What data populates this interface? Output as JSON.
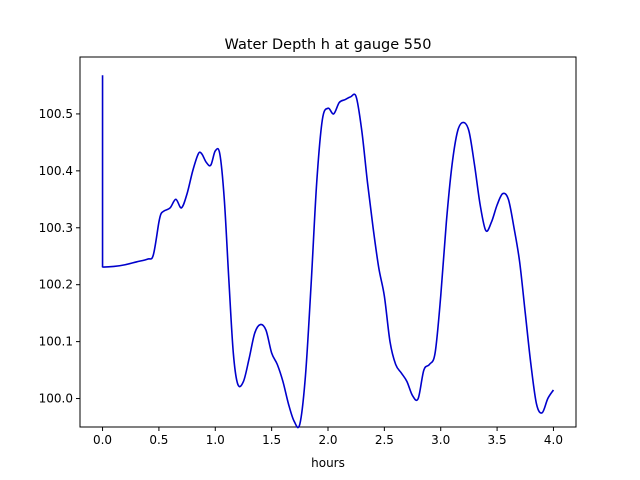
{
  "chart_data": {
    "type": "line",
    "title": "Water Depth h at gauge 550",
    "xlabel": "hours",
    "ylabel": "",
    "xlim": [
      -0.2,
      4.2
    ],
    "ylim": [
      99.95,
      100.6
    ],
    "xticks": [
      0.0,
      0.5,
      1.0,
      1.5,
      2.0,
      2.5,
      3.0,
      3.5,
      4.0
    ],
    "xtick_labels": [
      "0.0",
      "0.5",
      "1.0",
      "1.5",
      "2.0",
      "2.5",
      "3.0",
      "3.5",
      "4.0"
    ],
    "yticks": [
      100.0,
      100.1,
      100.2,
      100.3,
      100.4,
      100.5
    ],
    "ytick_labels": [
      "100.0",
      "100.1",
      "100.2",
      "100.3",
      "100.4",
      "100.5"
    ],
    "grid": false,
    "series": [
      {
        "color": "#0000cc",
        "x": [
          0.0,
          0.0,
          0.01,
          0.1,
          0.2,
          0.3,
          0.4,
          0.45,
          0.5,
          0.52,
          0.55,
          0.6,
          0.65,
          0.7,
          0.75,
          0.8,
          0.85,
          0.88,
          0.92,
          0.96,
          1.0,
          1.04,
          1.08,
          1.12,
          1.16,
          1.2,
          1.25,
          1.3,
          1.35,
          1.4,
          1.45,
          1.5,
          1.55,
          1.6,
          1.65,
          1.7,
          1.75,
          1.8,
          1.85,
          1.9,
          1.95,
          2.0,
          2.05,
          2.1,
          2.15,
          2.2,
          2.25,
          2.3,
          2.35,
          2.4,
          2.45,
          2.5,
          2.55,
          2.6,
          2.65,
          2.7,
          2.75,
          2.8,
          2.85,
          2.9,
          2.95,
          3.0,
          3.05,
          3.1,
          3.15,
          3.2,
          3.25,
          3.3,
          3.35,
          3.4,
          3.45,
          3.5,
          3.55,
          3.6,
          3.65,
          3.7,
          3.75,
          3.8,
          3.85,
          3.9,
          3.95,
          4.0
        ],
        "y": [
          100.568,
          100.232,
          100.231,
          100.232,
          100.235,
          100.24,
          100.245,
          100.252,
          100.31,
          100.325,
          100.33,
          100.335,
          100.35,
          100.335,
          100.36,
          100.4,
          100.43,
          100.43,
          100.415,
          100.41,
          100.435,
          100.43,
          100.35,
          100.21,
          100.08,
          100.025,
          100.03,
          100.07,
          100.115,
          100.13,
          100.12,
          100.08,
          100.06,
          100.03,
          99.99,
          99.96,
          99.955,
          100.04,
          100.2,
          100.38,
          100.49,
          100.51,
          100.5,
          100.52,
          100.525,
          100.53,
          100.53,
          100.47,
          100.38,
          100.3,
          100.23,
          100.18,
          100.1,
          100.06,
          100.045,
          100.03,
          100.005,
          100.0,
          100.05,
          100.06,
          100.08,
          100.18,
          100.31,
          100.41,
          100.47,
          100.485,
          100.47,
          100.41,
          100.34,
          100.295,
          100.31,
          100.34,
          100.36,
          100.35,
          100.3,
          100.24,
          100.15,
          100.06,
          99.99,
          99.975,
          100.0,
          100.015
        ]
      }
    ]
  }
}
